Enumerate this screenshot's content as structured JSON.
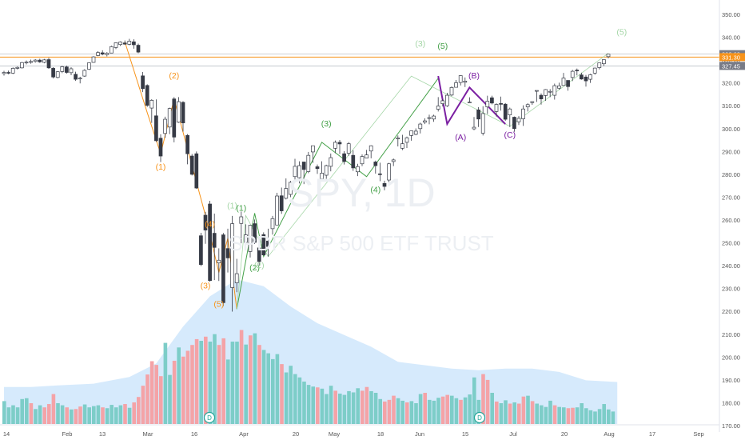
{
  "chart_data": {
    "type": "candlestick",
    "symbol": "SPY, 1D",
    "description": "SPDR S&P 500 ETF TRUST",
    "price_axis": {
      "ticks": [
        170,
        180,
        190,
        200,
        210,
        220,
        230,
        240,
        250,
        260,
        270,
        280,
        290,
        300,
        310,
        320,
        330,
        340,
        350
      ],
      "labels": [
        "170.00",
        "180.00",
        "190.00",
        "200.00",
        "210.00",
        "220.00",
        "230.00",
        "240.00",
        "250.00",
        "260.00",
        "270.00",
        "280.00",
        "290.00",
        "300.00",
        "310.00",
        "320.00",
        "330.00",
        "340.00",
        "350.00"
      ],
      "range": [
        170,
        355
      ]
    },
    "price_markers": [
      {
        "value": 332.6,
        "label": "332.60",
        "color": "#787b86"
      },
      {
        "value": 331.3,
        "label": "331.30",
        "color": "#f7931a"
      },
      {
        "value": 327.45,
        "label": "327.45",
        "color": "#787b86"
      }
    ],
    "time_axis": {
      "labels": [
        "14",
        "Feb",
        "13",
        "Mar",
        "16",
        "Apr",
        "20",
        "May",
        "18",
        "Jun",
        "15",
        "Jul",
        "20",
        "Aug",
        "17",
        "Sep"
      ]
    },
    "dividend_markers": [
      "D",
      "D"
    ],
    "elliott_waves": {
      "orange": [
        "(1)",
        "(2)",
        "(3)",
        "(4)",
        "(5)"
      ],
      "green": [
        "(1)",
        "(2)",
        "(3)",
        "(4)",
        "(5)"
      ],
      "lightgreen": [
        "(1)",
        "(2)",
        "(3)",
        "(5)"
      ],
      "purple": [
        "(A)",
        "(B)",
        "(C)"
      ]
    },
    "colors": {
      "up": "#ffffff",
      "down": "#363a45",
      "wick": "#363a45",
      "vol_up": "#7dcdc8",
      "vol_down": "#f4a3a7",
      "vol_ma": "#cfe6fb",
      "orange": "#f7931a",
      "green": "#43a047",
      "lightgreen": "#a5d6a7",
      "purple": "#7b1fa2",
      "lightgray": "#c9c9c9"
    },
    "candles": [
      [
        324.1,
        325.3,
        323.2,
        324.6
      ],
      [
        324.6,
        325.4,
        323.8,
        324.3
      ],
      [
        324.3,
        326.8,
        323.9,
        326.4
      ],
      [
        326.4,
        327.2,
        325.9,
        326.8
      ],
      [
        326.6,
        329.2,
        326.3,
        328.9
      ],
      [
        328.9,
        329.8,
        328.1,
        329.1
      ],
      [
        329.0,
        330.2,
        328.4,
        329.4
      ],
      [
        329.4,
        330.4,
        328.9,
        330.0
      ],
      [
        330.0,
        330.6,
        328.8,
        329.2
      ],
      [
        329.0,
        330.5,
        328.6,
        330.1
      ],
      [
        330.2,
        331.0,
        326.2,
        326.6
      ],
      [
        326.4,
        326.9,
        322.0,
        322.6
      ],
      [
        322.4,
        325.2,
        322.0,
        324.9
      ],
      [
        325.0,
        327.5,
        324.3,
        327.1
      ],
      [
        327.0,
        327.6,
        324.1,
        324.6
      ],
      [
        324.5,
        326.9,
        323.4,
        326.2
      ],
      [
        323.8,
        324.9,
        320.9,
        321.6
      ],
      [
        321.8,
        322.7,
        319.8,
        322.1
      ],
      [
        323.0,
        326.0,
        322.7,
        325.5
      ],
      [
        326.0,
        329.0,
        325.7,
        328.8
      ],
      [
        329.0,
        331.7,
        328.8,
        331.4
      ],
      [
        332.0,
        333.9,
        331.7,
        333.3
      ],
      [
        333.2,
        334.3,
        332.1,
        332.6
      ],
      [
        332.4,
        333.5,
        331.6,
        333.0
      ],
      [
        333.1,
        336.3,
        333.0,
        335.9
      ],
      [
        335.5,
        337.8,
        334.8,
        337.6
      ],
      [
        336.8,
        338.2,
        336.2,
        337.9
      ],
      [
        337.5,
        338.6,
        336.7,
        337.0
      ],
      [
        336.9,
        339.3,
        336.5,
        338.3
      ],
      [
        338.0,
        339.1,
        335.0,
        336.7
      ],
      [
        336.5,
        337.2,
        333.0,
        333.5
      ],
      [
        323.1,
        324.8,
        316.0,
        317.5
      ],
      [
        318.9,
        319.4,
        309.5,
        310.2
      ],
      [
        309.0,
        312.9,
        302.5,
        312.4
      ],
      [
        305.6,
        312.8,
        294.2,
        294.7
      ],
      [
        295.8,
        297.5,
        285.4,
        288.0
      ],
      [
        297.9,
        305.2,
        296.0,
        304.1
      ],
      [
        300.7,
        309.2,
        297.6,
        308.8
      ],
      [
        313.0,
        313.8,
        294.0,
        296.3
      ],
      [
        302.8,
        313.8,
        302.5,
        311.8
      ],
      [
        311.5,
        312.0,
        298.7,
        302.5
      ],
      [
        297.0,
        297.6,
        284.4,
        289.0
      ],
      [
        288.0,
        288.9,
        279.5,
        280.0
      ],
      [
        289.0,
        290.0,
        273.6,
        274.0
      ],
      [
        253.1,
        254.4,
        239.8,
        240.5
      ],
      [
        262.1,
        263.6,
        249.6,
        255.6
      ],
      [
        267.0,
        268.4,
        233.0,
        233.5
      ],
      [
        254.2,
        262.8,
        233.7,
        248.0
      ],
      [
        241.2,
        247.6,
        233.3,
        242.4
      ],
      [
        253.5,
        254.3,
        222.3,
        223.8
      ],
      [
        247.5,
        256.2,
        237.0,
        243.4
      ],
      [
        230.4,
        261.8,
        219.9,
        258.4
      ],
      [
        232.5,
        243.0,
        228.4,
        236.5
      ],
      [
        258.5,
        263.7,
        249.8,
        261.4
      ],
      [
        250.2,
        258.1,
        247.4,
        253.5
      ],
      [
        246.2,
        257.9,
        243.6,
        257.7
      ],
      [
        258.4,
        260.2,
        249.5,
        250.2
      ],
      [
        247.8,
        248.1,
        240.0,
        241.8
      ],
      [
        253.6,
        254.6,
        244.5,
        244.7
      ],
      [
        250.8,
        256.2,
        244.0,
        248.4
      ],
      [
        256.2,
        261.8,
        253.6,
        260.6
      ],
      [
        257.8,
        271.9,
        257.8,
        270.5
      ],
      [
        270.6,
        274.2,
        262.7,
        264.0
      ],
      [
        269.5,
        278.2,
        269.0,
        273.8
      ],
      [
        271.2,
        277.1,
        270.0,
        276.5
      ],
      [
        279.0,
        286.8,
        276.5,
        283.5
      ],
      [
        278.5,
        285.7,
        276.0,
        283.8
      ],
      [
        285.4,
        284.3,
        275.7,
        282.1
      ],
      [
        281.2,
        289.8,
        280.5,
        288.3
      ],
      [
        289.8,
        292.2,
        285.0,
        292.5
      ],
      [
        283.3,
        284.3,
        280.2,
        282.5
      ],
      [
        278.0,
        285.7,
        278.0,
        280.5
      ],
      [
        279.6,
        284.2,
        277.3,
        283.8
      ],
      [
        283.5,
        289.1,
        281.3,
        287.3
      ],
      [
        291.4,
        294.8,
        289.3,
        294.0
      ],
      [
        294.0,
        295.0,
        288.9,
        293.3
      ],
      [
        289.0,
        290.1,
        284.3,
        285.6
      ],
      [
        289.2,
        294.1,
        288.1,
        293.4
      ],
      [
        288.3,
        290.5,
        281.5,
        282.8
      ],
      [
        281.1,
        284.6,
        279.2,
        283.4
      ],
      [
        284.6,
        288.7,
        283.6,
        287.8
      ],
      [
        287.1,
        290.7,
        287.0,
        288.5
      ],
      [
        290.2,
        292.7,
        287.0,
        292.5
      ],
      [
        285.4,
        286.0,
        280.3,
        283.8
      ],
      [
        280.2,
        285.1,
        277.0,
        280.0
      ],
      [
        276.0,
        277.2,
        273.0,
        274.7
      ],
      [
        277.5,
        285.0,
        276.6,
        284.6
      ],
      [
        285.6,
        286.9,
        283.6,
        286.3
      ],
      [
        295.5,
        297.0,
        292.2,
        295.9
      ],
      [
        291.4,
        297.3,
        290.6,
        293.4
      ],
      [
        294.0,
        296.5,
        291.5,
        296.0
      ],
      [
        297.0,
        299.0,
        294.7,
        299.0
      ],
      [
        297.5,
        300.1,
        297.1,
        298.9
      ],
      [
        300.0,
        302.6,
        297.9,
        302.0
      ],
      [
        302.8,
        304.5,
        302.0,
        303.4
      ],
      [
        304.8,
        306.1,
        301.9,
        304.8
      ],
      [
        304.2,
        306.1,
        303.0,
        305.5
      ],
      [
        308.5,
        313.8,
        307.5,
        309.9
      ],
      [
        310.9,
        312.9,
        309.7,
        312.2
      ],
      [
        310.0,
        315.7,
        309.5,
        314.6
      ],
      [
        314.7,
        318.5,
        314.2,
        318.0
      ],
      [
        318.1,
        321.3,
        318.1,
        320.1
      ],
      [
        320.2,
        323.4,
        318.9,
        323.2
      ],
      [
        320.3,
        322.4,
        318.2,
        320.8
      ],
      [
        311.5,
        313.7,
        311.2,
        311.6
      ],
      [
        299.9,
        305.1,
        299.3,
        300.6
      ],
      [
        308.2,
        309.4,
        300.7,
        304.2
      ],
      [
        298.0,
        309.8,
        297.0,
        306.6
      ],
      [
        309.5,
        314.4,
        306.4,
        312.0
      ],
      [
        313.5,
        314.4,
        310.6,
        311.2
      ],
      [
        307.5,
        311.1,
        305.3,
        310.6
      ],
      [
        311.0,
        314.0,
        307.9,
        310.8
      ],
      [
        310.7,
        311.2,
        303.4,
        304.1
      ],
      [
        306.0,
        309.2,
        300.7,
        308.6
      ],
      [
        305.0,
        305.3,
        298.6,
        300.0
      ],
      [
        303.0,
        305.5,
        301.6,
        304.5
      ],
      [
        304.3,
        310.2,
        301.2,
        308.6
      ],
      [
        309.5,
        311.1,
        307.5,
        310.5
      ],
      [
        311.4,
        312.0,
        310.4,
        311.8
      ],
      [
        316.4,
        316.5,
        311.7,
        316.7
      ],
      [
        314.6,
        315.4,
        310.5,
        313.0
      ],
      [
        314.5,
        317.3,
        312.2,
        317.1
      ],
      [
        316.2,
        317.3,
        313.8,
        316.3
      ],
      [
        314.6,
        319.7,
        312.7,
        318.8
      ],
      [
        317.7,
        320.1,
        317.1,
        318.7
      ],
      [
        318.9,
        324.4,
        318.8,
        322.1
      ],
      [
        321.1,
        321.1,
        316.6,
        318.4
      ],
      [
        322.4,
        325.7,
        320.8,
        325.1
      ],
      [
        325.6,
        326.3,
        323.3,
        325.4
      ],
      [
        323.5,
        324.5,
        321.4,
        321.7
      ],
      [
        322.6,
        323.5,
        318.4,
        320.9
      ],
      [
        321.6,
        324.0,
        320.0,
        323.6
      ],
      [
        324.3,
        326.7,
        323.6,
        326.5
      ],
      [
        326.7,
        328.7,
        325.9,
        328.8
      ],
      [
        328.4,
        330.0,
        327.4,
        330.2
      ],
      [
        331.5,
        332.6,
        330.8,
        332.6
      ]
    ],
    "volumes": [
      [
        55,
        1
      ],
      [
        40,
        1
      ],
      [
        45,
        1
      ],
      [
        40,
        1
      ],
      [
        60,
        1
      ],
      [
        62,
        1
      ],
      [
        50,
        0
      ],
      [
        36,
        1
      ],
      [
        45,
        1
      ],
      [
        40,
        0
      ],
      [
        48,
        0
      ],
      [
        72,
        0
      ],
      [
        50,
        1
      ],
      [
        45,
        1
      ],
      [
        40,
        0
      ],
      [
        35,
        1
      ],
      [
        36,
        0
      ],
      [
        42,
        0
      ],
      [
        47,
        1
      ],
      [
        40,
        1
      ],
      [
        43,
        1
      ],
      [
        45,
        1
      ],
      [
        40,
        0
      ],
      [
        38,
        1
      ],
      [
        46,
        1
      ],
      [
        40,
        1
      ],
      [
        45,
        1
      ],
      [
        48,
        0
      ],
      [
        39,
        1
      ],
      [
        52,
        0
      ],
      [
        65,
        0
      ],
      [
        92,
        0
      ],
      [
        119,
        0
      ],
      [
        151,
        0
      ],
      [
        142,
        0
      ],
      [
        115,
        0
      ],
      [
        195,
        1
      ],
      [
        118,
        1
      ],
      [
        152,
        0
      ],
      [
        184,
        1
      ],
      [
        162,
        0
      ],
      [
        176,
        0
      ],
      [
        190,
        0
      ],
      [
        204,
        0
      ],
      [
        200,
        1
      ],
      [
        210,
        0
      ],
      [
        198,
        1
      ],
      [
        216,
        1
      ],
      [
        190,
        0
      ],
      [
        206,
        0
      ],
      [
        155,
        1
      ],
      [
        198,
        1
      ],
      [
        198,
        1
      ],
      [
        226,
        0
      ],
      [
        191,
        1
      ],
      [
        213,
        0
      ],
      [
        218,
        1
      ],
      [
        190,
        0
      ],
      [
        178,
        1
      ],
      [
        170,
        1
      ],
      [
        156,
        1
      ],
      [
        168,
        1
      ],
      [
        144,
        0
      ],
      [
        124,
        1
      ],
      [
        140,
        1
      ],
      [
        120,
        1
      ],
      [
        112,
        1
      ],
      [
        102,
        1
      ],
      [
        94,
        1
      ],
      [
        90,
        1
      ],
      [
        88,
        0
      ],
      [
        85,
        1
      ],
      [
        72,
        1
      ],
      [
        92,
        1
      ],
      [
        80,
        0
      ],
      [
        73,
        1
      ],
      [
        70,
        1
      ],
      [
        79,
        1
      ],
      [
        76,
        1
      ],
      [
        86,
        1
      ],
      [
        80,
        0
      ],
      [
        89,
        0
      ],
      [
        79,
        1
      ],
      [
        75,
        1
      ],
      [
        60,
        1
      ],
      [
        54,
        0
      ],
      [
        58,
        0
      ],
      [
        68,
        0
      ],
      [
        62,
        1
      ],
      [
        56,
        1
      ],
      [
        52,
        0
      ],
      [
        55,
        1
      ],
      [
        50,
        1
      ],
      [
        72,
        1
      ],
      [
        75,
        0
      ],
      [
        58,
        1
      ],
      [
        56,
        1
      ],
      [
        63,
        1
      ],
      [
        66,
        0
      ],
      [
        70,
        0
      ],
      [
        68,
        1
      ],
      [
        62,
        1
      ],
      [
        58,
        0
      ],
      [
        64,
        1
      ],
      [
        71,
        1
      ],
      [
        112,
        1
      ],
      [
        58,
        1
      ],
      [
        120,
        0
      ],
      [
        106,
        0
      ],
      [
        75,
        1
      ],
      [
        54,
        0
      ],
      [
        50,
        1
      ],
      [
        57,
        1
      ],
      [
        49,
        0
      ],
      [
        52,
        1
      ],
      [
        49,
        0
      ],
      [
        66,
        0
      ],
      [
        68,
        1
      ],
      [
        55,
        0
      ],
      [
        49,
        1
      ],
      [
        45,
        1
      ],
      [
        41,
        1
      ],
      [
        56,
        1
      ],
      [
        45,
        0
      ],
      [
        41,
        1
      ],
      [
        40,
        1
      ],
      [
        38,
        0
      ],
      [
        39,
        0
      ],
      [
        40,
        1
      ],
      [
        50,
        1
      ],
      [
        38,
        1
      ],
      [
        33,
        1
      ],
      [
        30,
        1
      ],
      [
        36,
        1
      ],
      [
        48,
        1
      ],
      [
        35,
        1
      ],
      [
        30,
        1
      ]
    ],
    "volume_ma_percent": [
      [
        0,
        22
      ],
      [
        6,
        22
      ],
      [
        12,
        23
      ],
      [
        20,
        24
      ],
      [
        28,
        28
      ],
      [
        34,
        36
      ],
      [
        40,
        58
      ],
      [
        46,
        76
      ],
      [
        52,
        86
      ],
      [
        58,
        82
      ],
      [
        64,
        70
      ],
      [
        70,
        60
      ],
      [
        76,
        53
      ],
      [
        82,
        46
      ],
      [
        88,
        37
      ],
      [
        94,
        35
      ],
      [
        100,
        33
      ],
      [
        106,
        32
      ],
      [
        112,
        33
      ],
      [
        118,
        33
      ],
      [
        124,
        31
      ],
      [
        130,
        26
      ],
      [
        137,
        25
      ]
    ]
  }
}
